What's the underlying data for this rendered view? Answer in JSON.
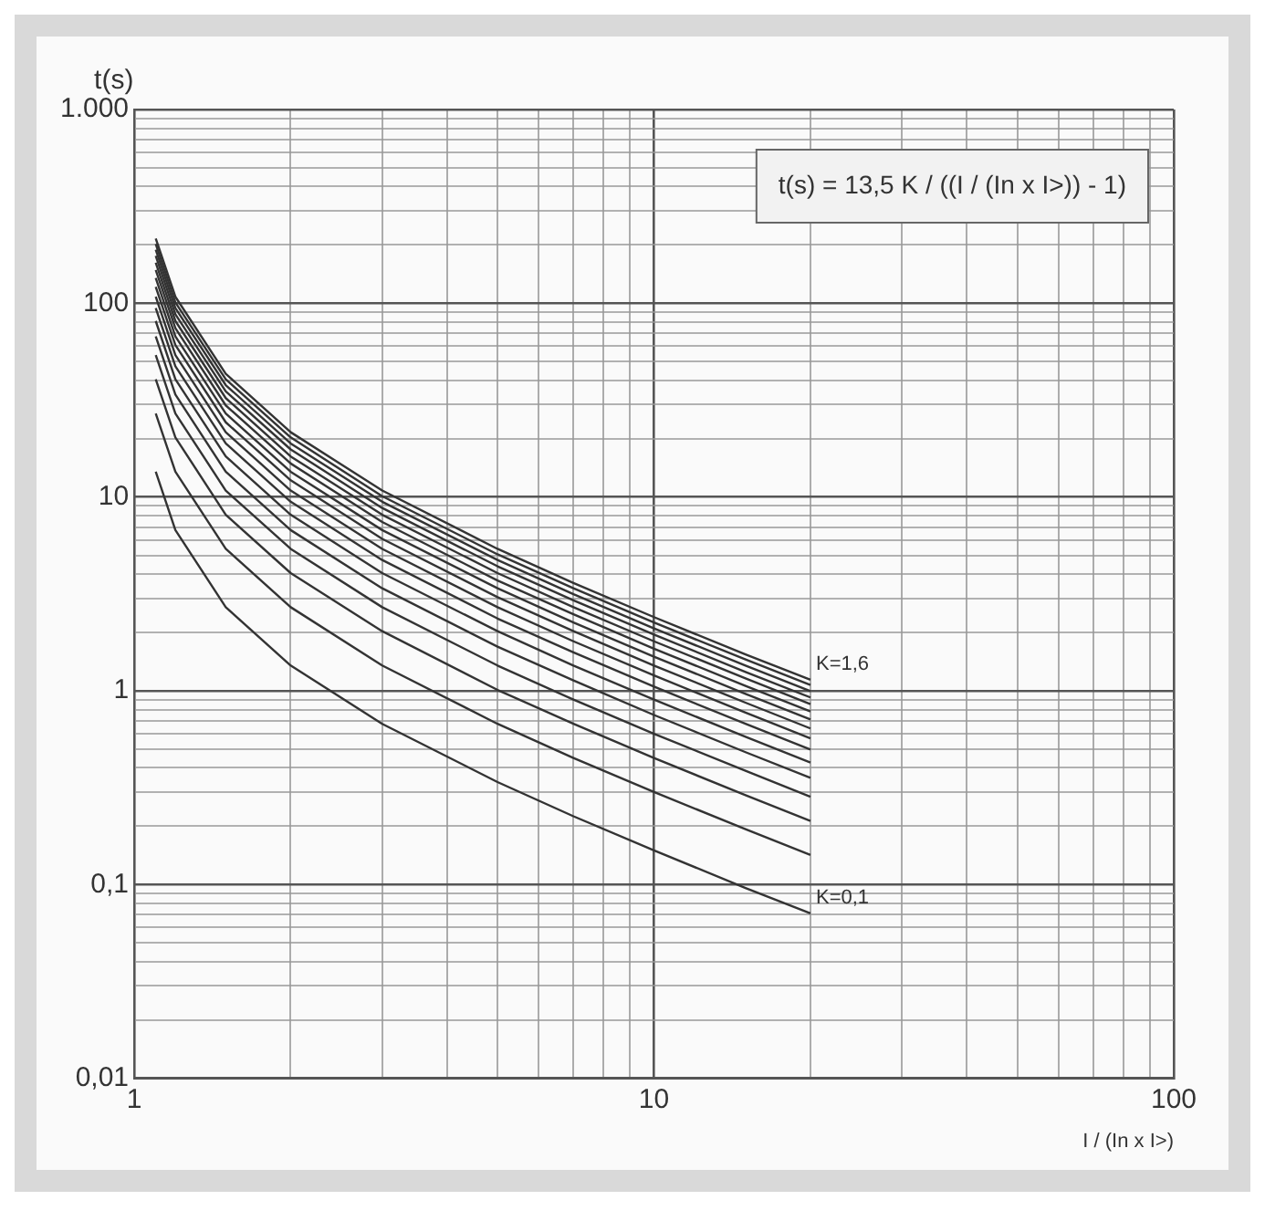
{
  "chart_data": {
    "type": "line",
    "ylabel": "t(s)",
    "xlabel": "I / (In x I>)",
    "x": [
      1.1,
      1.2,
      1.5,
      2,
      3,
      5,
      7,
      10,
      15,
      20
    ],
    "series": [
      {
        "color": "#333333",
        "values": [
          13.5,
          6.75,
          2.7,
          1.35,
          0.675,
          0.338,
          0.225,
          0.15,
          0.096,
          0.071
        ]
      },
      {
        "color": "#333333",
        "values": [
          27,
          13.5,
          5.4,
          2.7,
          1.35,
          0.675,
          0.45,
          0.3,
          0.193,
          0.142
        ]
      },
      {
        "color": "#333333",
        "values": [
          40.5,
          20.3,
          8.1,
          4.05,
          2.03,
          1.01,
          0.675,
          0.45,
          0.289,
          0.213
        ]
      },
      {
        "color": "#333333",
        "values": [
          54,
          27,
          10.8,
          5.4,
          2.7,
          1.35,
          0.9,
          0.6,
          0.386,
          0.284
        ]
      },
      {
        "color": "#333333",
        "values": [
          67.5,
          33.8,
          13.5,
          6.75,
          3.38,
          1.69,
          1.13,
          0.75,
          0.482,
          0.355
        ]
      },
      {
        "color": "#333333",
        "values": [
          81,
          40.5,
          16.2,
          8.1,
          4.05,
          2.03,
          1.35,
          0.9,
          0.579,
          0.426
        ]
      },
      {
        "color": "#333333",
        "values": [
          94.5,
          47.3,
          18.9,
          9.45,
          4.73,
          2.36,
          1.58,
          1.05,
          0.675,
          0.497
        ]
      },
      {
        "color": "#333333",
        "values": [
          108,
          54,
          21.6,
          10.8,
          5.4,
          2.7,
          1.8,
          1.2,
          0.771,
          0.568
        ]
      },
      {
        "color": "#333333",
        "values": [
          121.5,
          60.8,
          24.3,
          12.2,
          6.08,
          3.04,
          2.03,
          1.35,
          0.868,
          0.639
        ]
      },
      {
        "color": "#333333",
        "values": [
          135,
          67.5,
          27,
          13.5,
          6.75,
          3.38,
          2.25,
          1.5,
          0.964,
          0.711
        ]
      },
      {
        "color": "#333333",
        "values": [
          148.5,
          74.3,
          29.7,
          14.9,
          7.43,
          3.71,
          2.48,
          1.65,
          1.06,
          0.782
        ]
      },
      {
        "color": "#333333",
        "values": [
          162,
          81,
          32.4,
          16.2,
          8.1,
          4.05,
          2.7,
          1.8,
          1.16,
          0.853
        ]
      },
      {
        "color": "#333333",
        "values": [
          175.5,
          87.8,
          35.1,
          17.6,
          8.78,
          4.39,
          2.93,
          1.95,
          1.25,
          0.924
        ]
      },
      {
        "color": "#333333",
        "values": [
          189,
          94.5,
          37.8,
          18.9,
          9.45,
          4.73,
          3.15,
          2.1,
          1.35,
          0.995
        ]
      },
      {
        "color": "#333333",
        "values": [
          202.5,
          101,
          40.5,
          20.3,
          10.1,
          5.06,
          3.38,
          2.25,
          1.45,
          1.07
        ]
      },
      {
        "color": "#333333",
        "values": [
          216,
          108,
          43.2,
          21.6,
          10.8,
          5.4,
          3.6,
          2.4,
          1.54,
          1.14
        ]
      }
    ],
    "log": "xy",
    "grid": true,
    "xlim": [
      1,
      100
    ],
    "xticks": [
      1,
      {
        "value": 2,
        "label": null
      },
      {
        "value": 3,
        "label": null
      },
      {
        "value": 4,
        "label": null
      },
      {
        "value": 5,
        "label": null
      },
      {
        "value": 6,
        "label": null
      },
      {
        "value": 7,
        "label": null
      },
      {
        "value": 8,
        "label": null
      },
      {
        "value": 9,
        "label": null
      },
      10,
      {
        "value": 20,
        "label": null
      },
      {
        "value": 30,
        "label": null
      },
      {
        "value": 40,
        "label": null
      },
      {
        "value": 50,
        "label": null
      },
      {
        "value": 60,
        "label": null
      },
      {
        "value": 70,
        "label": null
      },
      {
        "value": 80,
        "label": null
      },
      {
        "value": 90,
        "label": null
      },
      100
    ],
    "ylim": [
      0.01,
      1000
    ],
    "yticks": [
      {
        "value": 0.01,
        "label": "0,01"
      },
      {
        "value": 0.02,
        "label": null
      },
      {
        "value": 0.03,
        "label": null
      },
      {
        "value": 0.04,
        "label": null
      },
      {
        "value": 0.05,
        "label": null
      },
      {
        "value": 0.06,
        "label": null
      },
      {
        "value": 0.07,
        "label": null
      },
      {
        "value": 0.08,
        "label": null
      },
      {
        "value": 0.09,
        "label": null
      },
      {
        "value": 0.1,
        "label": "0,1"
      },
      {
        "value": 0.2,
        "label": null
      },
      {
        "value": 0.3,
        "label": null
      },
      {
        "value": 0.4,
        "label": null
      },
      {
        "value": 0.5,
        "label": null
      },
      {
        "value": 0.6,
        "label": null
      },
      {
        "value": 0.7,
        "label": null
      },
      {
        "value": 0.8,
        "label": null
      },
      {
        "value": 0.9,
        "label": null
      },
      1,
      {
        "value": 2,
        "label": null
      },
      {
        "value": 3,
        "label": null
      },
      {
        "value": 4,
        "label": null
      },
      {
        "value": 5,
        "label": null
      },
      {
        "value": 6,
        "label": null
      },
      {
        "value": 7,
        "label": null
      },
      {
        "value": 8,
        "label": null
      },
      {
        "value": 9,
        "label": null
      },
      10,
      {
        "value": 20,
        "label": null
      },
      {
        "value": 30,
        "label": null
      },
      {
        "value": 40,
        "label": null
      },
      {
        "value": 50,
        "label": null
      },
      {
        "value": 60,
        "label": null
      },
      {
        "value": 70,
        "label": null
      },
      {
        "value": 80,
        "label": null
      },
      {
        "value": 90,
        "label": null
      },
      100,
      {
        "value": 200,
        "label": null
      },
      {
        "value": 300,
        "label": null
      },
      {
        "value": 400,
        "label": null
      },
      {
        "value": 500,
        "label": null
      },
      {
        "value": 600,
        "label": null
      },
      {
        "value": 700,
        "label": null
      },
      {
        "value": 800,
        "label": null
      },
      {
        "value": 900,
        "label": null
      },
      {
        "value": 1000,
        "label": "1.000"
      }
    ],
    "annotations": [
      {
        "text": "K=1,6",
        "x": 20,
        "y": 1.14
      },
      {
        "text": "K=0,1",
        "x": 20,
        "y": 0.071
      },
      "t(s) = 13,5 K / ((I / (In x I>)) - 1)"
    ]
  }
}
